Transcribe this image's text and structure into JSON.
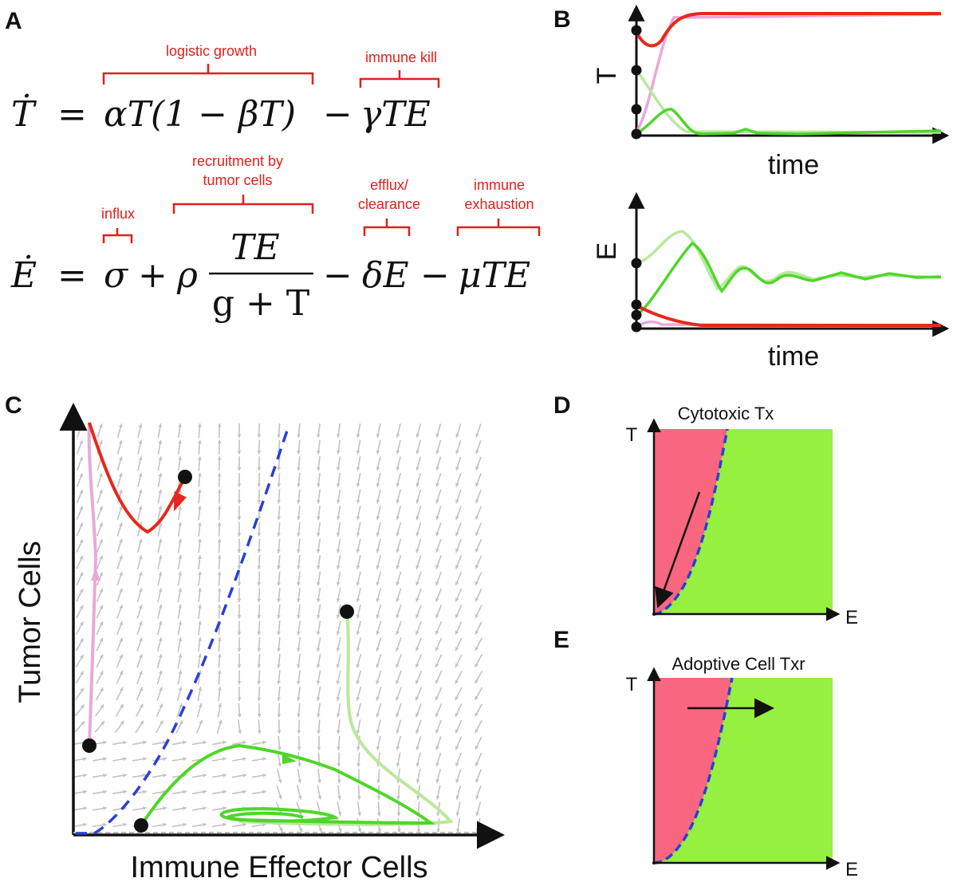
{
  "panels": {
    "a": {
      "letter": "A",
      "eq_T": {
        "lhs": "Ṫ",
        "eq": "=",
        "growth": "αT(1 − βT)",
        "minus": "−",
        "kill": "γTE",
        "ann_growth": "logistic growth",
        "ann_kill": "immune kill"
      },
      "eq_E": {
        "lhs": "Ė",
        "eq": "=",
        "sigma": "σ",
        "plus": "+",
        "rho": "ρ",
        "frac_num": "TE",
        "frac_den": "g + T",
        "minus1": "−",
        "delta": "δE",
        "minus2": "−",
        "mu": "μTE",
        "ann_influx": "influx",
        "ann_recruit_1": "recruitment by",
        "ann_recruit_2": "tumor cells",
        "ann_efflux_1": "efflux/",
        "ann_efflux_2": "clearance",
        "ann_exhaust_1": "immune",
        "ann_exhaust_2": "exhaustion"
      }
    },
    "b": {
      "letter": "B",
      "top_ylabel": "T",
      "top_xlabel": "time",
      "bottom_ylabel": "E",
      "bottom_xlabel": "time"
    },
    "c": {
      "letter": "C",
      "ylabel": "Tumor Cells",
      "xlabel": "Immune Effector Cells"
    },
    "d": {
      "letter": "D",
      "title": "Cytotoxic Tx",
      "ylabel": "T",
      "xlabel": "E"
    },
    "e": {
      "letter": "E",
      "title": "Adoptive Cell Txr",
      "ylabel": "T",
      "xlabel": "E"
    }
  },
  "colors": {
    "red": "#e8271c",
    "pink": "#eaa8d8",
    "green": "#4fd62a",
    "light_green": "#b9e89c",
    "blue_dash": "#2a3fd6",
    "vector_gray": "#c2c2c2",
    "tumor_region": "#f8667f",
    "immune_region": "#95f03f",
    "annotation": "#e0201b"
  }
}
